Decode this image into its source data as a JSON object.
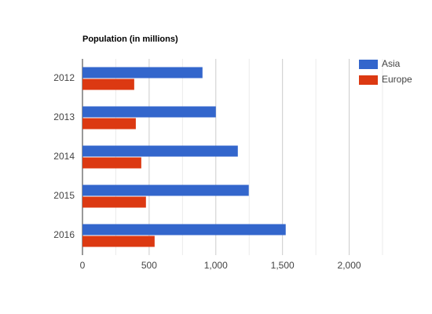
{
  "chart_data": {
    "type": "hbar",
    "title": "Population (in millions)",
    "categories": [
      "2012",
      "2013",
      "2014",
      "2015",
      "2016"
    ],
    "series": [
      {
        "name": "Asia",
        "color": "#3366cc",
        "values": [
          900,
          1000,
          1165,
          1247,
          1524
        ]
      },
      {
        "name": "Europe",
        "color": "#dc3912",
        "values": [
          388,
          400,
          441,
          476,
          541
        ]
      }
    ],
    "xlim": [
      0,
      2250
    ],
    "xticks": [
      0,
      500,
      {
        "value": 1000,
        "label": "1,000"
      },
      {
        "value": 1500,
        "label": "1,500"
      },
      {
        "value": 2000,
        "label": "2,000"
      }
    ],
    "xminorticks": [
      250,
      750,
      1250,
      1750,
      2250
    ],
    "grid": true,
    "legend": "right"
  }
}
